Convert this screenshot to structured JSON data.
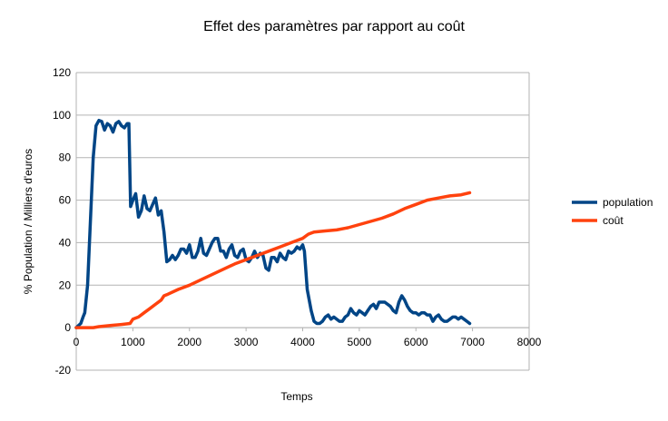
{
  "chart_data": {
    "type": "line",
    "title": "Effet des paramètres par rapport au coût",
    "xlabel": "Temps",
    "ylabel": "% Population / Milliers d'euros",
    "xlim": [
      0,
      8000
    ],
    "ylim": [
      -20,
      120
    ],
    "xticks": [
      0,
      1000,
      2000,
      3000,
      4000,
      5000,
      6000,
      7000,
      8000
    ],
    "yticks": [
      -20,
      0,
      20,
      40,
      60,
      80,
      100,
      120
    ],
    "grid": true,
    "legend_position": "right",
    "series": [
      {
        "name": "population",
        "color": "#004586",
        "points": [
          [
            0,
            0
          ],
          [
            80,
            2
          ],
          [
            120,
            5
          ],
          [
            150,
            7
          ],
          [
            200,
            20
          ],
          [
            250,
            50
          ],
          [
            300,
            80
          ],
          [
            350,
            95
          ],
          [
            400,
            97.5
          ],
          [
            450,
            97
          ],
          [
            500,
            93
          ],
          [
            550,
            96
          ],
          [
            600,
            95
          ],
          [
            650,
            92
          ],
          [
            700,
            96
          ],
          [
            750,
            97
          ],
          [
            800,
            95
          ],
          [
            850,
            94
          ],
          [
            900,
            96
          ],
          [
            930,
            96
          ],
          [
            960,
            57
          ],
          [
            1000,
            60
          ],
          [
            1050,
            63
          ],
          [
            1100,
            52
          ],
          [
            1150,
            55
          ],
          [
            1200,
            62
          ],
          [
            1250,
            56
          ],
          [
            1300,
            55
          ],
          [
            1350,
            58
          ],
          [
            1400,
            61
          ],
          [
            1450,
            53
          ],
          [
            1500,
            55
          ],
          [
            1550,
            45
          ],
          [
            1600,
            31
          ],
          [
            1650,
            32
          ],
          [
            1700,
            34
          ],
          [
            1750,
            32
          ],
          [
            1800,
            34
          ],
          [
            1850,
            37
          ],
          [
            1900,
            37
          ],
          [
            1950,
            35
          ],
          [
            2000,
            39
          ],
          [
            2050,
            33
          ],
          [
            2100,
            33
          ],
          [
            2150,
            36
          ],
          [
            2200,
            42
          ],
          [
            2250,
            35
          ],
          [
            2300,
            34
          ],
          [
            2350,
            37
          ],
          [
            2400,
            40
          ],
          [
            2450,
            42
          ],
          [
            2500,
            42
          ],
          [
            2550,
            36
          ],
          [
            2600,
            36
          ],
          [
            2650,
            33
          ],
          [
            2700,
            37
          ],
          [
            2750,
            39
          ],
          [
            2800,
            34
          ],
          [
            2850,
            33
          ],
          [
            2900,
            36
          ],
          [
            2950,
            37
          ],
          [
            3000,
            32
          ],
          [
            3050,
            31
          ],
          [
            3100,
            33
          ],
          [
            3150,
            36
          ],
          [
            3200,
            33
          ],
          [
            3250,
            35
          ],
          [
            3300,
            34
          ],
          [
            3350,
            28
          ],
          [
            3400,
            27
          ],
          [
            3450,
            33
          ],
          [
            3500,
            33
          ],
          [
            3550,
            31
          ],
          [
            3600,
            35
          ],
          [
            3650,
            33
          ],
          [
            3700,
            32
          ],
          [
            3750,
            36
          ],
          [
            3800,
            35
          ],
          [
            3850,
            36
          ],
          [
            3900,
            38
          ],
          [
            3950,
            37
          ],
          [
            4000,
            39
          ],
          [
            4030,
            36
          ],
          [
            4080,
            18
          ],
          [
            4150,
            8
          ],
          [
            4200,
            3
          ],
          [
            4250,
            2
          ],
          [
            4300,
            2
          ],
          [
            4350,
            3
          ],
          [
            4400,
            5
          ],
          [
            4450,
            6
          ],
          [
            4500,
            4
          ],
          [
            4550,
            5
          ],
          [
            4600,
            4
          ],
          [
            4650,
            3
          ],
          [
            4700,
            3
          ],
          [
            4750,
            5
          ],
          [
            4800,
            6
          ],
          [
            4850,
            9
          ],
          [
            4900,
            7
          ],
          [
            4950,
            6
          ],
          [
            5000,
            8
          ],
          [
            5050,
            7
          ],
          [
            5100,
            6
          ],
          [
            5150,
            8
          ],
          [
            5200,
            10
          ],
          [
            5250,
            11
          ],
          [
            5300,
            9
          ],
          [
            5350,
            12
          ],
          [
            5400,
            12
          ],
          [
            5450,
            12
          ],
          [
            5500,
            11
          ],
          [
            5550,
            10
          ],
          [
            5600,
            8
          ],
          [
            5650,
            7
          ],
          [
            5700,
            12
          ],
          [
            5750,
            15
          ],
          [
            5800,
            13
          ],
          [
            5850,
            10
          ],
          [
            5900,
            8
          ],
          [
            5950,
            7
          ],
          [
            6000,
            7
          ],
          [
            6050,
            6
          ],
          [
            6100,
            7
          ],
          [
            6150,
            7
          ],
          [
            6200,
            6
          ],
          [
            6250,
            6
          ],
          [
            6300,
            3
          ],
          [
            6350,
            5
          ],
          [
            6400,
            6
          ],
          [
            6450,
            4
          ],
          [
            6500,
            3
          ],
          [
            6550,
            3
          ],
          [
            6600,
            4
          ],
          [
            6650,
            5
          ],
          [
            6700,
            5
          ],
          [
            6750,
            4
          ],
          [
            6800,
            5
          ],
          [
            6850,
            4
          ],
          [
            6900,
            3
          ],
          [
            6950,
            2
          ]
        ]
      },
      {
        "name": "coût",
        "color": "#ff420e",
        "points": [
          [
            0,
            0
          ],
          [
            300,
            0
          ],
          [
            400,
            0.5
          ],
          [
            600,
            1
          ],
          [
            800,
            1.5
          ],
          [
            950,
            2
          ],
          [
            1000,
            4
          ],
          [
            1100,
            5
          ],
          [
            1200,
            7
          ],
          [
            1300,
            9
          ],
          [
            1400,
            11
          ],
          [
            1500,
            13
          ],
          [
            1550,
            15
          ],
          [
            1600,
            15.5
          ],
          [
            1800,
            18
          ],
          [
            2000,
            20
          ],
          [
            2200,
            22.5
          ],
          [
            2400,
            25
          ],
          [
            2600,
            27.5
          ],
          [
            2800,
            30
          ],
          [
            3000,
            32
          ],
          [
            3200,
            34
          ],
          [
            3400,
            36
          ],
          [
            3600,
            38
          ],
          [
            3800,
            40
          ],
          [
            4000,
            42
          ],
          [
            4050,
            43
          ],
          [
            4100,
            44
          ],
          [
            4150,
            44.5
          ],
          [
            4200,
            45
          ],
          [
            4400,
            45.5
          ],
          [
            4600,
            46
          ],
          [
            4800,
            47
          ],
          [
            5000,
            48.5
          ],
          [
            5200,
            50
          ],
          [
            5400,
            51.5
          ],
          [
            5600,
            53.5
          ],
          [
            5800,
            56
          ],
          [
            6000,
            58
          ],
          [
            6200,
            60
          ],
          [
            6400,
            61
          ],
          [
            6600,
            62
          ],
          [
            6800,
            62.5
          ],
          [
            6950,
            63.5
          ]
        ]
      }
    ]
  }
}
